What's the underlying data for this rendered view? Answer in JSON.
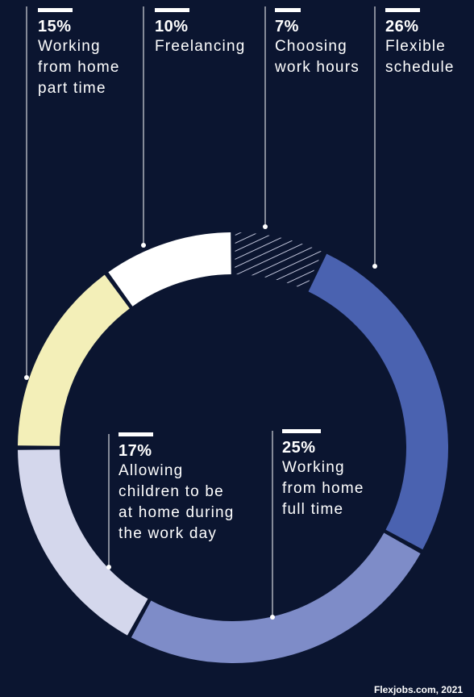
{
  "chart_data": {
    "type": "donut",
    "slices": [
      {
        "label": "Flexible\nschedule",
        "value": 26,
        "display": "26%",
        "color": "#4a62b0"
      },
      {
        "label": "Working\nfrom home\nfull time",
        "value": 25,
        "display": "25%",
        "color": "#7e8cc8"
      },
      {
        "label": "Allowing\nchildren to be\nat home during\nthe work day",
        "value": 17,
        "display": "17%",
        "color": "#d4d7ec"
      },
      {
        "label": "Working\nfrom home\npart time",
        "value": 15,
        "display": "15%",
        "color": "#f3efb8"
      },
      {
        "label": "Freelancing",
        "value": 10,
        "display": "10%",
        "color": "#ffffff"
      },
      {
        "label": "Choosing\nwork hours",
        "value": 7,
        "display": "7%",
        "color": "#0b1530",
        "hatched": true
      }
    ]
  },
  "source": "Flexjobs.com, 2021"
}
